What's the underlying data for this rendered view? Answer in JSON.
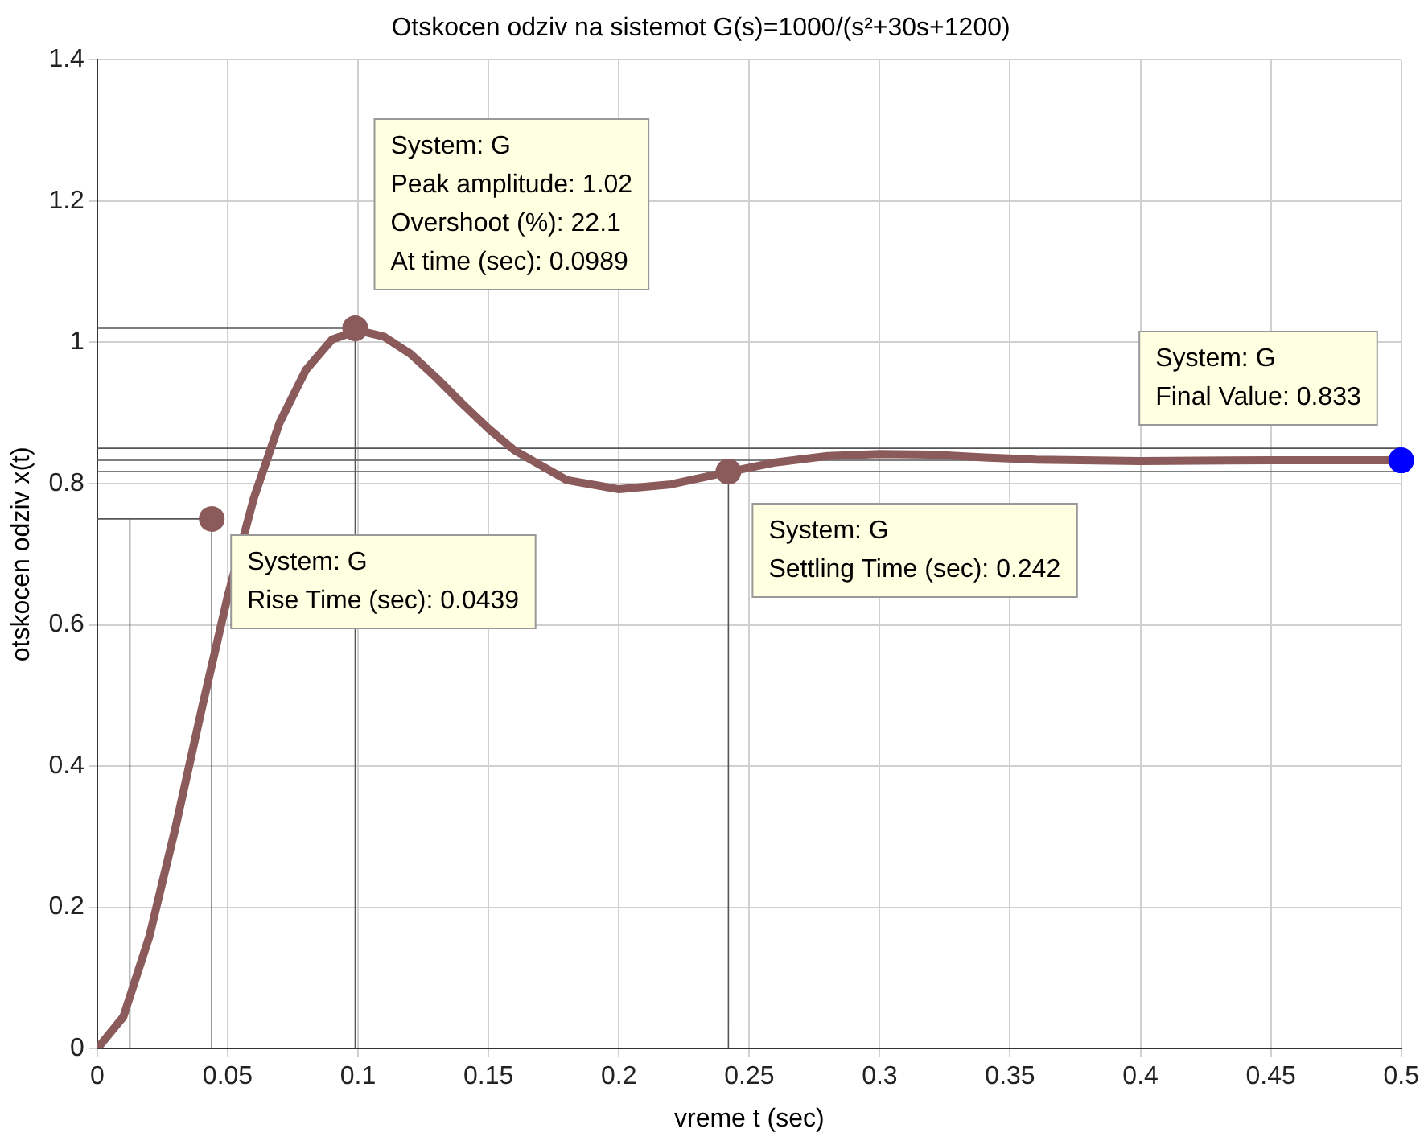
{
  "chart_data": {
    "type": "line",
    "title": "Otskocen odziv na sistemot G(s)=1000/(s²+30s+1200)",
    "xlabel": "vreme t (sec)",
    "ylabel": "otskocen odziv x(t)",
    "x": [
      0,
      0.01,
      0.02,
      0.03,
      0.04,
      0.05,
      0.06,
      0.07,
      0.08,
      0.09,
      0.1,
      0.11,
      0.12,
      0.13,
      0.14,
      0.15,
      0.16,
      0.18,
      0.2,
      0.22,
      0.24,
      0.26,
      0.28,
      0.3,
      0.32,
      0.34,
      0.36,
      0.4,
      0.45,
      0.5
    ],
    "series": [
      {
        "type": "line",
        "color": "#555555",
        "x": [
          0,
          0.0439,
          0.0439
        ],
        "values": [
          0.75,
          0.75,
          0
        ]
      },
      {
        "type": "line",
        "color": "#555555",
        "x": [
          0.0125,
          0.0125
        ],
        "values": [
          0,
          0.75
        ]
      },
      {
        "type": "line",
        "color": "#555555",
        "x": [
          0,
          0.0989,
          0.0989
        ],
        "values": [
          1.02,
          1.02,
          0
        ]
      },
      {
        "type": "line",
        "color": "#555555",
        "x": [
          0,
          0.5
        ],
        "values": [
          0.85,
          0.85
        ]
      },
      {
        "type": "line",
        "color": "#555555",
        "x": [
          0,
          0.5
        ],
        "values": [
          0.817,
          0.817
        ]
      },
      {
        "type": "line",
        "color": "#555555",
        "x": [
          0.242,
          0.242
        ],
        "values": [
          0.817,
          0
        ]
      },
      {
        "type": "line",
        "color": "#555555",
        "x": [
          0,
          0.5
        ],
        "values": [
          0.833,
          0.833
        ]
      },
      {
        "color": "#8b5a5a",
        "values": [
          0,
          0.045,
          0.159,
          0.313,
          0.48,
          0.64,
          0.779,
          0.887,
          0.961,
          1.004,
          1.017,
          1.008,
          0.984,
          0.95,
          0.913,
          0.878,
          0.847,
          0.805,
          0.792,
          0.799,
          0.815,
          0.83,
          0.839,
          0.842,
          0.841,
          0.837,
          0.834,
          0.832,
          0.833,
          0.833
        ]
      }
    ],
    "xlim": [
      0,
      0.5
    ],
    "xticks": [
      0,
      0.05,
      0.1,
      0.15,
      0.2,
      0.25,
      0.3,
      0.35,
      0.4,
      0.45,
      0.5
    ],
    "ylim": [
      0,
      1.4
    ],
    "yticks": [
      0,
      0.2,
      0.4,
      0.6,
      0.8,
      1,
      1.2,
      1.4
    ],
    "grid": true,
    "legend": false,
    "line_style": "solid",
    "annotations": [
      {
        "text": "System: G\nRise Time (sec): 0.0439",
        "x": 0.0439,
        "y": 0.75
      },
      {
        "text": "System: G\nPeak amplitude: 1.02\nOvershoot (%): 22.1\nAt time (sec): 0.0989",
        "x": 0.0989,
        "y": 1.02
      },
      {
        "text": "System: G\nSettling Time (sec): 0.242",
        "x": 0.242,
        "y": 0.817
      },
      {
        "text": "System: G\nFinal Value: 0.833",
        "x": 0.5,
        "y": 0.833
      }
    ]
  }
}
